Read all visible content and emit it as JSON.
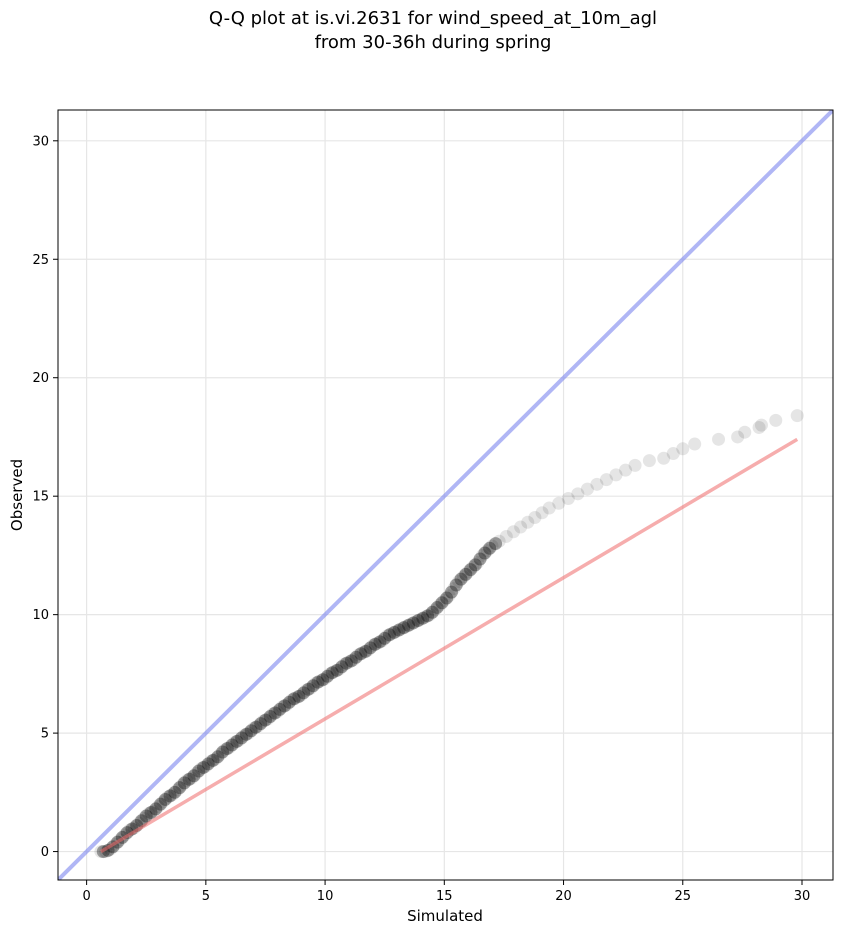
{
  "chart_data": {
    "type": "scatter",
    "title_lines": [
      "Q-Q plot at is.vi.2631 for wind_speed_at_10m_agl",
      "from 30-36h during spring"
    ],
    "xlabel": "Simulated",
    "ylabel": "Observed",
    "xlim": [
      -1.2,
      31.3
    ],
    "ylim": [
      -1.2,
      31.3
    ],
    "xticks": [
      0,
      5,
      10,
      15,
      20,
      25,
      30
    ],
    "yticks": [
      0,
      5,
      10,
      15,
      20,
      25,
      30
    ],
    "grid": true,
    "series": [
      {
        "role": "quantile-points",
        "color": "#000000",
        "opacity": 0.1,
        "x": [
          0.6,
          0.8,
          1.0,
          1.2,
          1.4,
          1.6,
          1.8,
          2.0,
          2.2,
          2.4,
          2.6,
          2.8,
          3.0,
          3.2,
          3.4,
          3.6,
          3.8,
          4.0,
          4.2,
          4.4,
          4.6,
          4.8,
          5.0,
          5.2,
          5.4,
          5.6,
          5.8,
          6.0,
          6.2,
          6.4,
          6.6,
          6.8,
          7.0,
          7.2,
          7.4,
          7.6,
          7.8,
          8.0,
          8.2,
          8.4,
          8.6,
          8.8,
          9.0,
          9.2,
          9.4,
          9.6,
          9.8,
          10.0,
          10.2,
          10.4,
          10.6,
          10.8,
          11.0,
          11.2,
          11.4,
          11.6,
          11.8,
          12.0,
          12.2,
          12.4,
          12.6,
          12.8,
          13.0,
          13.2,
          13.4,
          13.6,
          13.8,
          14.0,
          14.2,
          14.4,
          14.6,
          14.8,
          15.0,
          15.2,
          15.4,
          15.6,
          15.8,
          16.0,
          16.2,
          16.4,
          16.6,
          16.8,
          17.0,
          17.3,
          17.6,
          17.9,
          18.2,
          18.5,
          18.8,
          19.1,
          19.4,
          19.8,
          20.2,
          20.6,
          21.0,
          21.4,
          21.8,
          22.2,
          22.6,
          23.0,
          23.6,
          24.2,
          24.6,
          25.0,
          25.5,
          26.5,
          27.3,
          27.6,
          28.2,
          28.3,
          28.9,
          29.8
        ],
        "y": [
          0.0,
          0.0,
          0.1,
          0.3,
          0.5,
          0.7,
          0.9,
          1.0,
          1.2,
          1.4,
          1.6,
          1.7,
          1.9,
          2.1,
          2.3,
          2.4,
          2.6,
          2.8,
          3.0,
          3.1,
          3.3,
          3.5,
          3.6,
          3.8,
          3.9,
          4.1,
          4.3,
          4.4,
          4.6,
          4.7,
          4.9,
          5.0,
          5.2,
          5.3,
          5.5,
          5.6,
          5.8,
          5.9,
          6.1,
          6.2,
          6.4,
          6.5,
          6.6,
          6.8,
          6.9,
          7.1,
          7.2,
          7.3,
          7.5,
          7.6,
          7.7,
          7.9,
          8.0,
          8.1,
          8.3,
          8.4,
          8.5,
          8.7,
          8.8,
          8.9,
          9.1,
          9.2,
          9.3,
          9.4,
          9.5,
          9.6,
          9.7,
          9.8,
          9.9,
          10.0,
          10.2,
          10.4,
          10.6,
          10.8,
          11.1,
          11.4,
          11.6,
          11.8,
          12.0,
          12.2,
          12.5,
          12.7,
          12.9,
          13.1,
          13.3,
          13.5,
          13.7,
          13.9,
          14.1,
          14.3,
          14.5,
          14.7,
          14.9,
          15.1,
          15.3,
          15.5,
          15.7,
          15.9,
          16.1,
          16.3,
          16.5,
          16.6,
          16.8,
          17.0,
          17.2,
          17.4,
          17.5,
          17.7,
          17.9,
          18.0,
          18.2,
          18.4
        ]
      },
      {
        "role": "fit-line",
        "color": "#ee6a6a",
        "opacity": 0.55,
        "x": [
          0.6,
          29.8
        ],
        "y": [
          0.0,
          17.4
        ]
      },
      {
        "role": "identity-line",
        "color": "#7b86ef",
        "opacity": 0.6,
        "x": [
          -1.2,
          31.3
        ],
        "y": [
          -1.2,
          31.3
        ]
      }
    ]
  }
}
